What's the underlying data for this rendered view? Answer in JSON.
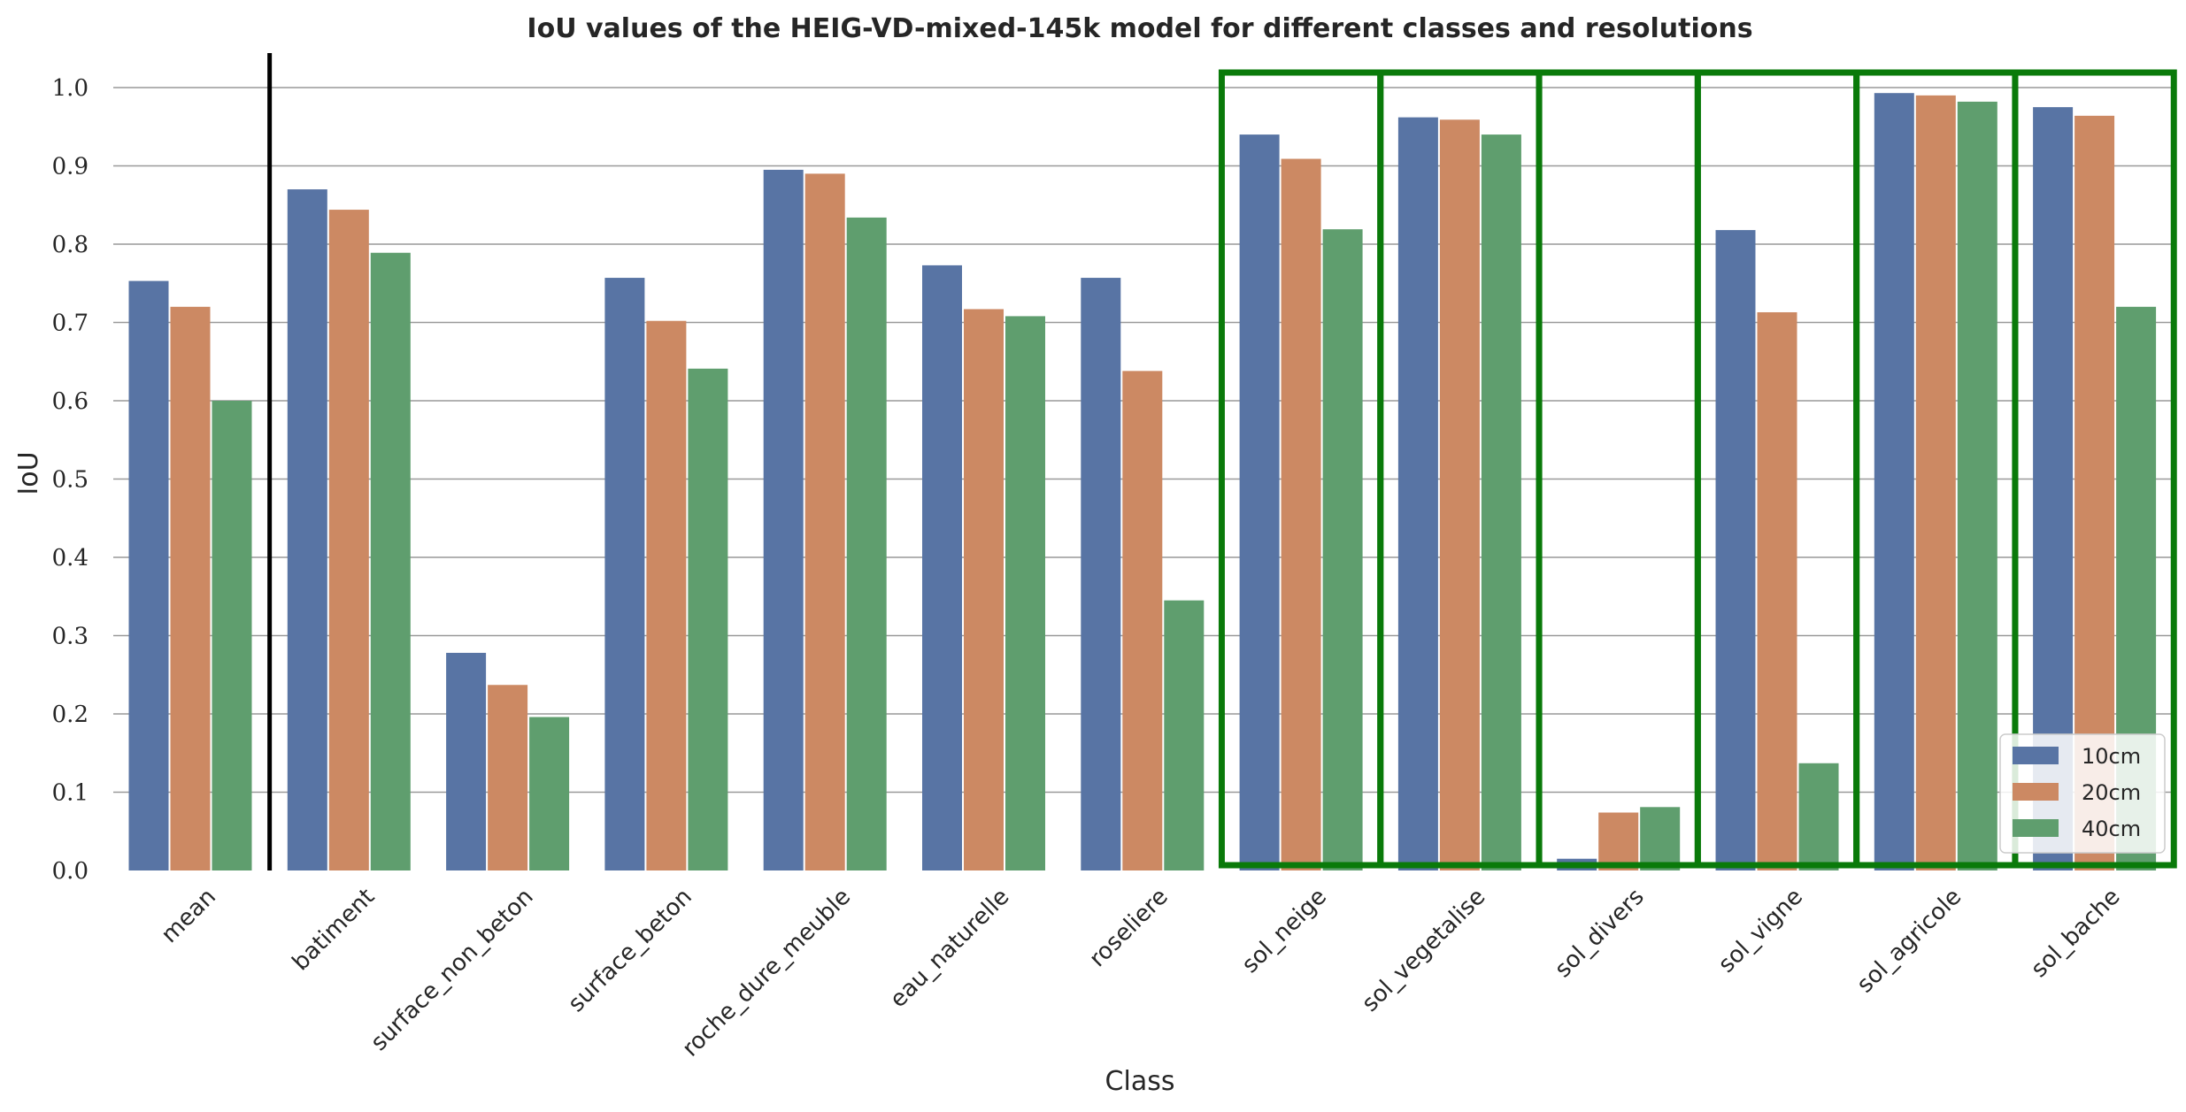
{
  "chart_data": {
    "type": "bar",
    "title": "IoU values of the HEIG-VD-mixed-145k model for different classes and resolutions",
    "xlabel": "Class",
    "ylabel": "IoU",
    "ylim": [
      0,
      1.05
    ],
    "yticks": [
      "0.0",
      "0.1",
      "0.2",
      "0.3",
      "0.4",
      "0.5",
      "0.6",
      "0.7",
      "0.8",
      "0.9",
      "1.0"
    ],
    "grid": "horizontal",
    "legend_position": "bottom-right",
    "categories": [
      "mean",
      "batiment",
      "surface_non_beton",
      "surface_beton",
      "roche_dure_meuble",
      "eau_naturelle",
      "roseliere",
      "sol_neige",
      "sol_vegetalise",
      "sol_divers",
      "sol_vigne",
      "sol_agricole",
      "sol_bache"
    ],
    "series": [
      {
        "name": "10cm",
        "color": "#5874a4",
        "values": [
          0.753,
          0.87,
          0.278,
          0.757,
          0.895,
          0.773,
          0.757,
          0.94,
          0.962,
          0.015,
          0.818,
          0.993,
          0.975
        ]
      },
      {
        "name": "20cm",
        "color": "#cc8963",
        "values": [
          0.72,
          0.844,
          0.237,
          0.702,
          0.89,
          0.717,
          0.638,
          0.909,
          0.959,
          0.074,
          0.713,
          0.99,
          0.964
        ]
      },
      {
        "name": "40cm",
        "color": "#5f9e6e",
        "values": [
          0.6,
          0.789,
          0.196,
          0.641,
          0.834,
          0.708,
          0.345,
          0.819,
          0.94,
          0.081,
          0.137,
          0.982,
          0.72
        ]
      }
    ],
    "separator_after_category": "mean",
    "highlighted_categories": [
      "sol_neige",
      "sol_vegetalise",
      "sol_divers",
      "sol_vigne",
      "sol_agricole",
      "sol_bache"
    ],
    "highlight_color": "#0a7a0a",
    "separator_color": "#000000"
  }
}
